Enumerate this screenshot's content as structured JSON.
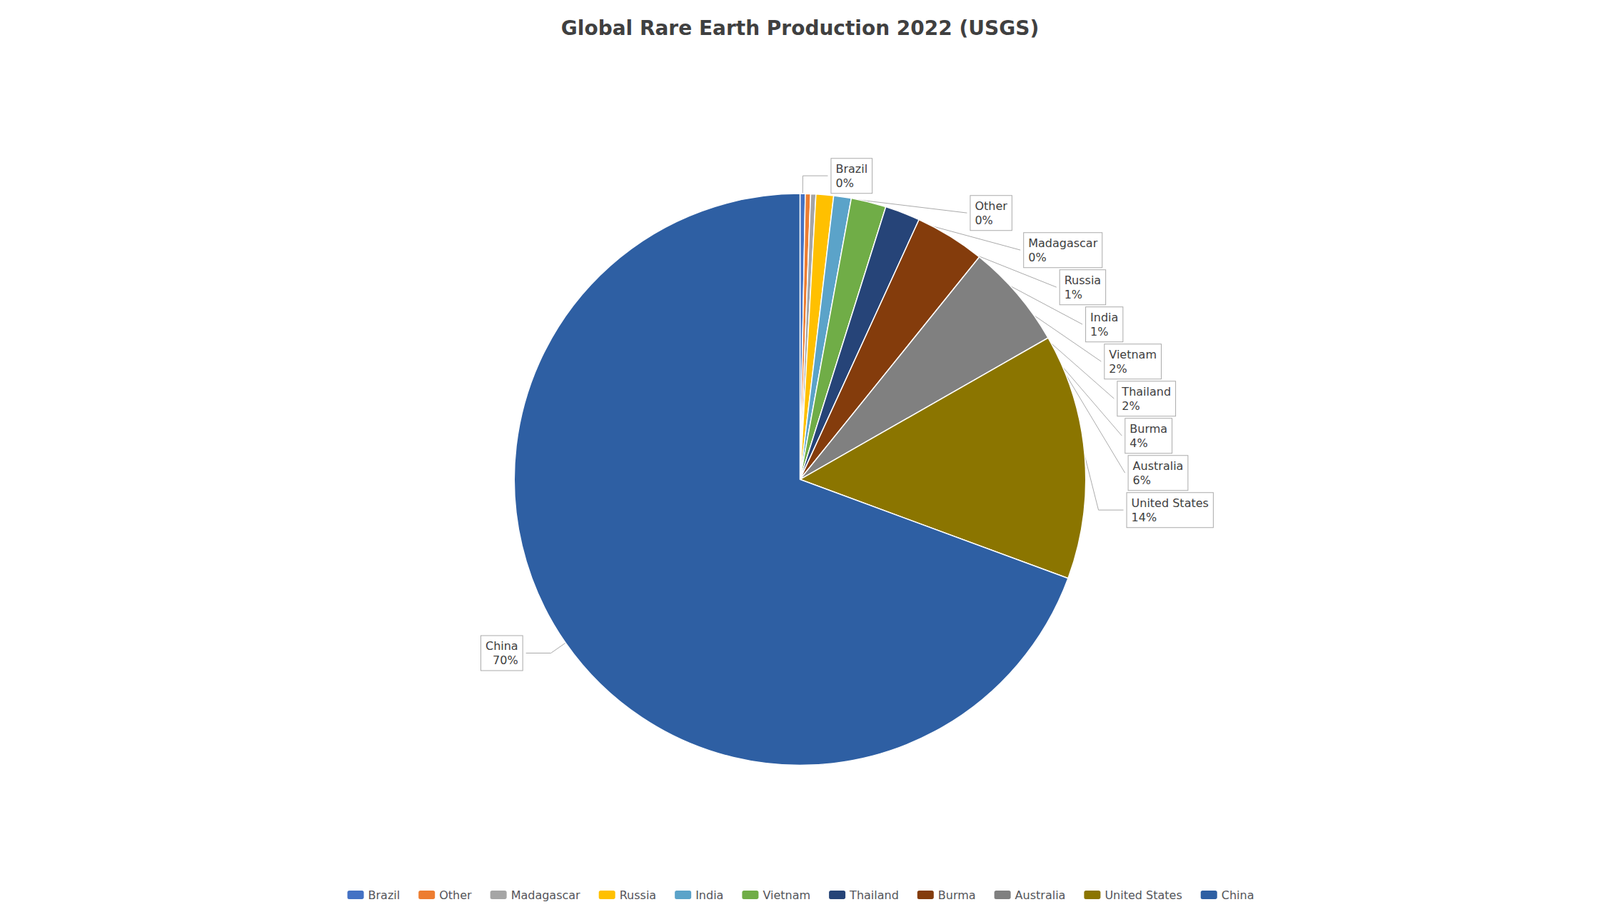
{
  "chart_data": {
    "type": "pie",
    "title": "Global Rare Earth Production 2022 (USGS)",
    "categories": [
      "Brazil",
      "Other",
      "Madagascar",
      "Russia",
      "India",
      "Vietnam",
      "Thailand",
      "Burma",
      "Australia",
      "United States",
      "China"
    ],
    "values": [
      0.3,
      0.3,
      0.3,
      1.0,
      1.0,
      2.0,
      2.0,
      4.0,
      6.0,
      14.0,
      70.0
    ],
    "value_labels": [
      "0%",
      "0%",
      "0%",
      "1%",
      "1%",
      "2%",
      "2%",
      "4%",
      "6%",
      "14%",
      "70%"
    ],
    "colors": [
      "#4472C4",
      "#ED7D31",
      "#A5A5A5",
      "#FFC000",
      "#5BA3C9",
      "#70AD47",
      "#264478",
      "#843C0C",
      "#808080",
      "#8B7500",
      "#2E5FA3"
    ],
    "data_labels": true,
    "legend": "bottom"
  }
}
